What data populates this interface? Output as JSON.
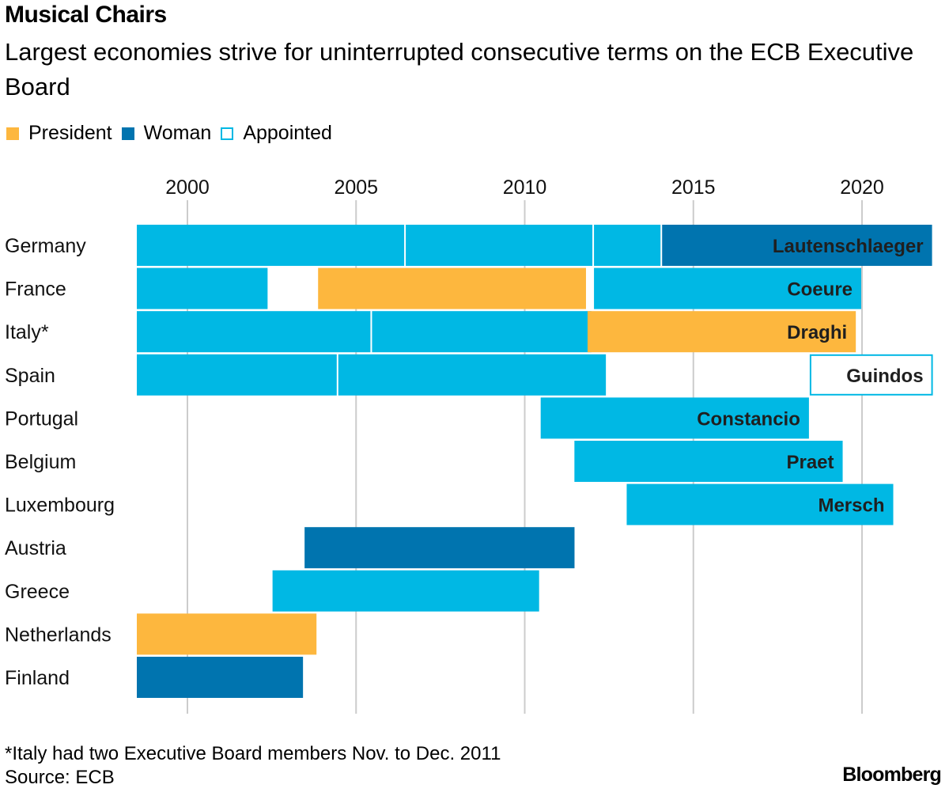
{
  "header": {
    "title": "Musical Chairs",
    "subtitle": "Largest economies strive for uninterrupted consecutive terms on the ECB Executive Board"
  },
  "legend": [
    {
      "label": "President",
      "style": "fill",
      "color": "#fdb73e"
    },
    {
      "label": "Woman",
      "style": "fill",
      "color": "#0074af"
    },
    {
      "label": "Appointed",
      "style": "outline",
      "color": "#00b8e4"
    }
  ],
  "colors": {
    "member": "#00b8e4",
    "president": "#fdb73e",
    "woman": "#0074af",
    "appointed_fill": "#ffffff",
    "grid": "#cccccc",
    "label_text": "#1f1f1f"
  },
  "chart_data": {
    "type": "timeline",
    "title": "Musical Chairs",
    "subtitle": "Largest economies strive for uninterrupted consecutive terms on the ECB Executive Board",
    "xlabel": "",
    "ylabel": "",
    "x_ticks": [
      2000,
      2005,
      2010,
      2015,
      2020
    ],
    "xlim": [
      1998.0,
      2022.2
    ],
    "grid": true,
    "legend_position": "top-left",
    "categories": [
      "Germany",
      "France",
      "Italy*",
      "Spain",
      "Portugal",
      "Belgium",
      "Luxembourg",
      "Austria",
      "Greece",
      "Netherlands",
      "Finland"
    ],
    "terms": [
      {
        "country": "Germany",
        "start": 1998.45,
        "end": 2006.45,
        "type": "member",
        "label": ""
      },
      {
        "country": "Germany",
        "start": 2006.45,
        "end": 2012.03,
        "type": "member",
        "label": ""
      },
      {
        "country": "Germany",
        "start": 2012.03,
        "end": 2014.05,
        "type": "member",
        "label": ""
      },
      {
        "country": "Germany",
        "start": 2014.05,
        "end": 2022.1,
        "type": "woman",
        "label": "Lautenschlaeger"
      },
      {
        "country": "France",
        "start": 1998.45,
        "end": 2002.4,
        "type": "member",
        "label": ""
      },
      {
        "country": "France",
        "start": 2003.85,
        "end": 2011.84,
        "type": "president",
        "label": ""
      },
      {
        "country": "France",
        "start": 2012.03,
        "end": 2020.0,
        "type": "member",
        "label": "Coeure"
      },
      {
        "country": "Italy*",
        "start": 1998.45,
        "end": 2005.45,
        "type": "member",
        "label": ""
      },
      {
        "country": "Italy*",
        "start": 2005.45,
        "end": 2012.0,
        "type": "member",
        "label": "",
        "overlap_note": "ended Dec. 2011"
      },
      {
        "country": "Italy*",
        "start": 2011.84,
        "end": 2019.84,
        "type": "president",
        "label": "Draghi",
        "overlap_note": "started Nov. 2011"
      },
      {
        "country": "Spain",
        "start": 1998.45,
        "end": 2004.45,
        "type": "member",
        "label": ""
      },
      {
        "country": "Spain",
        "start": 2004.45,
        "end": 2012.43,
        "type": "member",
        "label": ""
      },
      {
        "country": "Spain",
        "start": 2018.45,
        "end": 2022.1,
        "type": "appointed",
        "label": "Guindos"
      },
      {
        "country": "Portugal",
        "start": 2010.45,
        "end": 2018.45,
        "type": "member",
        "label": "Constancio"
      },
      {
        "country": "Belgium",
        "start": 2011.45,
        "end": 2019.45,
        "type": "member",
        "label": "Praet"
      },
      {
        "country": "Luxembourg",
        "start": 2013.0,
        "end": 2020.95,
        "type": "member",
        "label": "Mersch"
      },
      {
        "country": "Austria",
        "start": 2003.45,
        "end": 2011.5,
        "type": "woman",
        "label": ""
      },
      {
        "country": "Greece",
        "start": 2002.5,
        "end": 2010.45,
        "type": "member",
        "label": ""
      },
      {
        "country": "Netherlands",
        "start": 1998.45,
        "end": 2003.85,
        "type": "president",
        "label": ""
      },
      {
        "country": "Finland",
        "start": 1998.45,
        "end": 2003.45,
        "type": "woman",
        "label": ""
      }
    ]
  },
  "footer": {
    "note": "*Italy had two Executive Board members Nov. to Dec. 2011",
    "source": "Source: ECB",
    "brand": "Bloomberg"
  }
}
